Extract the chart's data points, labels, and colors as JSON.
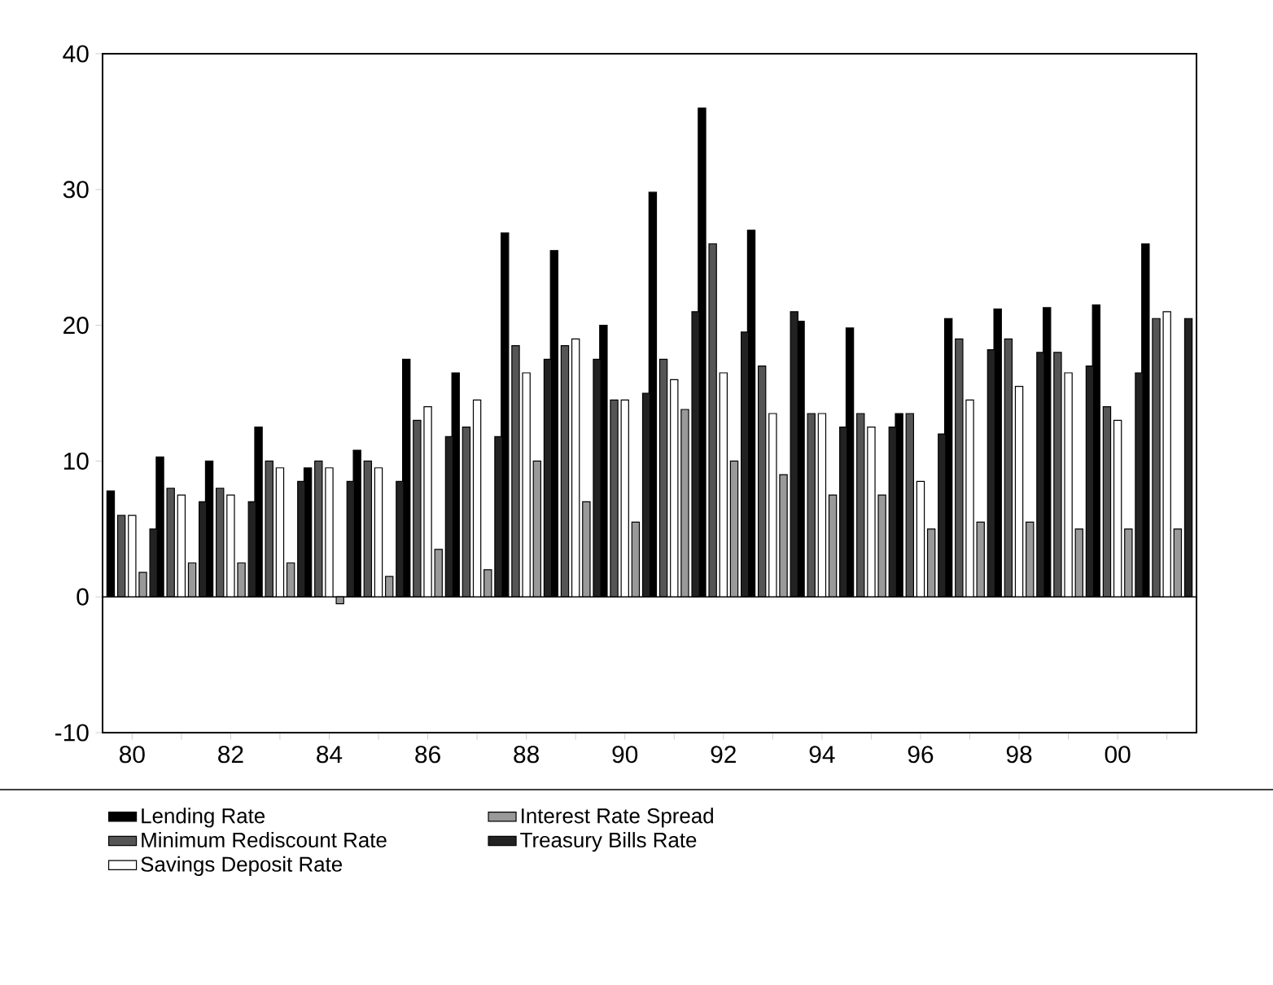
{
  "chart_data": {
    "type": "bar",
    "categories": [
      "80",
      null,
      "82",
      null,
      "84",
      null,
      "86",
      null,
      "88",
      null,
      "90",
      null,
      "92",
      null,
      "94",
      null,
      "96",
      null,
      "98",
      null,
      "00",
      null
    ],
    "series": [
      {
        "name": "Lending Rate",
        "color": "#000000",
        "values": [
          7.8,
          10.3,
          10,
          12.5,
          9.5,
          10.8,
          17.5,
          16.5,
          26.8,
          25.5,
          20,
          29.8,
          36,
          27,
          20.3,
          19.8,
          13.5,
          20.5,
          21.2,
          21.3,
          21.5,
          26
        ]
      },
      {
        "name": "Minimum Rediscount Rate",
        "color": "#555555",
        "values": [
          6,
          8,
          8,
          10,
          10,
          10,
          13,
          12.5,
          18.5,
          18.5,
          14.5,
          17.5,
          26,
          17,
          13.5,
          13.5,
          13.5,
          19,
          19,
          18,
          14,
          20.5
        ]
      },
      {
        "name": "Savings Deposit Rate",
        "color": "#ffffff",
        "values": [
          6,
          7.5,
          7.5,
          9.5,
          9.5,
          9.5,
          14,
          14.5,
          16.5,
          19,
          14.5,
          16,
          16.5,
          13.5,
          13.5,
          12.5,
          8.5,
          14.5,
          15.5,
          16.5,
          13,
          21
        ]
      },
      {
        "name": "Interest Rate Spread",
        "color": "#999999",
        "values": [
          1.8,
          2.5,
          2.5,
          2.5,
          -0.5,
          1.5,
          3.5,
          2,
          10,
          7,
          5.5,
          13.8,
          10,
          9,
          7.5,
          7.5,
          5,
          5.5,
          5.5,
          5,
          5,
          5
        ]
      },
      {
        "name": "Treasury Bills Rate",
        "color": "#222222",
        "values": [
          5,
          7,
          7,
          8.5,
          8.5,
          8.5,
          11.8,
          11.8,
          17.5,
          17.5,
          15,
          21,
          19.5,
          21,
          12.5,
          12.5,
          12,
          18.2,
          18,
          17,
          16.5,
          20.5
        ]
      }
    ],
    "ylim": [
      -10,
      40
    ],
    "yticks": [
      -10,
      0,
      10,
      20,
      30,
      40
    ],
    "legend": "bottom",
    "ref_lines": [
      {
        "axis": "y",
        "value": 0
      }
    ]
  }
}
